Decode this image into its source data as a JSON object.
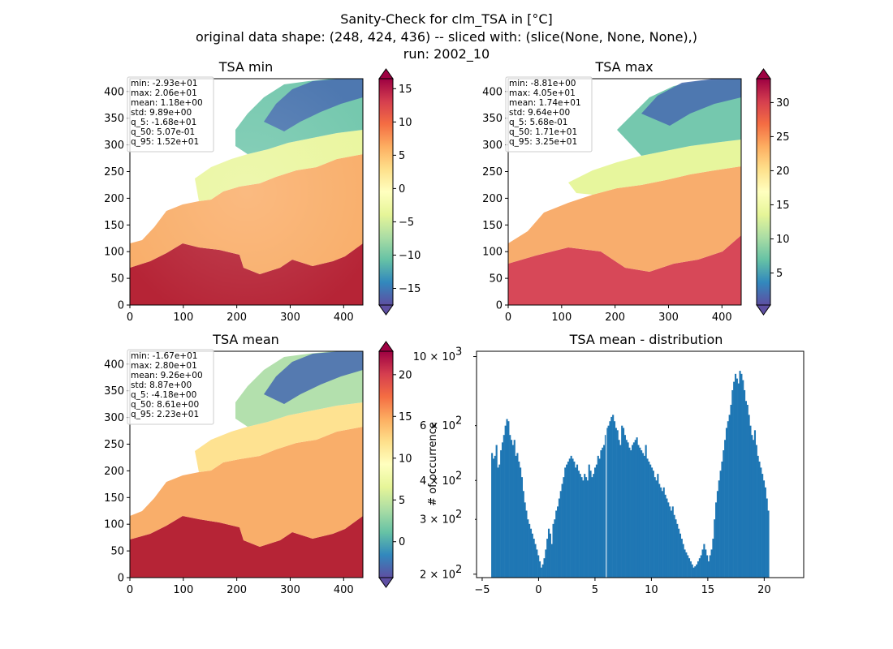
{
  "figure": {
    "title_lines": [
      "Sanity-Check for clm_TSA in [°C]",
      "original data shape: (248, 424, 436) -- sliced with: (slice(None, None, None),)",
      "run: 2002_10"
    ]
  },
  "chart_data": [
    {
      "type": "heatmap",
      "title": "TSA min",
      "xlim": [
        0,
        436
      ],
      "ylim": [
        0,
        424
      ],
      "xticks": [
        "0",
        "100",
        "200",
        "300",
        "400"
      ],
      "yticks": [
        "0",
        "50",
        "100",
        "150",
        "200",
        "250",
        "300",
        "350",
        "400"
      ],
      "colormap": "Spectral_r",
      "colorbar": {
        "vmin": -17.5,
        "vmax": 16.5,
        "ticks": [
          "−15",
          "−10",
          "−5",
          "0",
          "5",
          "10",
          "15"
        ],
        "extend": "both"
      },
      "stats": [
        "min: -2.93e+01",
        "max: 2.06e+01",
        "mean: 1.18e+00",
        "std: 9.89e+00",
        "q_5: -1.68e+01",
        "q_50: 5.07e-01",
        "q_95: 1.52e+01"
      ]
    },
    {
      "type": "heatmap",
      "title": "TSA max",
      "xlim": [
        0,
        436
      ],
      "ylim": [
        0,
        424
      ],
      "xticks": [
        "0",
        "100",
        "200",
        "300",
        "400"
      ],
      "yticks": [
        "0",
        "50",
        "100",
        "150",
        "200",
        "250",
        "300",
        "350",
        "400"
      ],
      "colormap": "Spectral_r",
      "colorbar": {
        "vmin": 0.3,
        "vmax": 33.5,
        "ticks": [
          "5",
          "10",
          "15",
          "20",
          "25",
          "30"
        ],
        "extend": "both"
      },
      "stats": [
        "min: -8.81e+00",
        "max: 4.05e+01",
        "mean: 1.74e+01",
        "std: 9.64e+00",
        "q_5: 5.68e-01",
        "q_50: 1.71e+01",
        "q_95: 3.25e+01"
      ]
    },
    {
      "type": "heatmap",
      "title": "TSA mean",
      "xlim": [
        0,
        436
      ],
      "ylim": [
        0,
        424
      ],
      "xticks": [
        "0",
        "100",
        "200",
        "300",
        "400"
      ],
      "yticks": [
        "0",
        "50",
        "100",
        "150",
        "200",
        "250",
        "300",
        "350",
        "400"
      ],
      "colormap": "Spectral_r",
      "colorbar": {
        "vmin": -4.3,
        "vmax": 22.8,
        "ticks": [
          "0",
          "5",
          "10",
          "15",
          "20"
        ],
        "extend": "both"
      },
      "stats": [
        "min: -1.67e+01",
        "max: 2.80e+01",
        "mean: 9.26e+00",
        "std: 8.87e+00",
        "q_5: -4.18e+00",
        "q_50: 8.61e+00",
        "q_95: 2.23e+01"
      ]
    },
    {
      "type": "bar",
      "title": "TSA mean - distribution",
      "ylabel": "# of occurrence",
      "yscale": "log",
      "xlim": [
        -5.5,
        23.5
      ],
      "ylim": [
        195,
        1040
      ],
      "xticks": [
        "−5",
        "0",
        "5",
        "10",
        "15",
        "20"
      ],
      "yticks_major": [
        {
          "value": 200,
          "base": "2",
          "exp": "2"
        },
        {
          "value": 1000,
          "base": "10",
          "exp": "3"
        }
      ],
      "yticks_minor": [
        {
          "value": 300,
          "base": "3",
          "exp": "2"
        },
        {
          "value": 400,
          "base": "4",
          "exp": "2"
        },
        {
          "value": 600,
          "base": "6",
          "exp": "2"
        }
      ],
      "bar_color": "#1f77b4",
      "bins": {
        "start": -4.2,
        "width": 0.1324
      },
      "values": [
        490,
        470,
        480,
        520,
        440,
        450,
        500,
        530,
        560,
        600,
        630,
        620,
        560,
        540,
        520,
        540,
        480,
        490,
        460,
        440,
        410,
        370,
        340,
        320,
        300,
        290,
        280,
        270,
        260,
        250,
        240,
        230,
        220,
        210,
        215,
        225,
        240,
        260,
        280,
        270,
        250,
        290,
        300,
        320,
        330,
        350,
        370,
        390,
        410,
        440,
        450,
        460,
        470,
        480,
        470,
        460,
        440,
        450,
        430,
        420,
        410,
        400,
        420,
        410,
        400,
        450,
        430,
        410,
        420,
        440,
        450,
        480,
        470,
        500,
        510,
        520,
        560,
        590,
        600,
        620,
        640,
        650,
        620,
        590,
        580,
        540,
        520,
        600,
        590,
        560,
        540,
        530,
        510,
        500,
        520,
        530,
        540,
        550,
        520,
        510,
        500,
        490,
        480,
        520,
        470,
        460,
        450,
        440,
        430,
        410,
        400,
        420,
        390,
        380,
        370,
        380,
        360,
        350,
        340,
        330,
        320,
        330,
        310,
        300,
        290,
        280,
        270,
        260,
        250,
        240,
        235,
        230,
        225,
        220,
        215,
        210,
        212,
        215,
        220,
        225,
        230,
        240,
        250,
        240,
        230,
        220,
        230,
        240,
        260,
        300,
        340,
        370,
        400,
        430,
        460,
        500,
        540,
        590,
        620,
        650,
        700,
        780,
        830,
        880,
        850,
        820,
        900,
        880,
        840,
        780,
        720,
        700,
        650,
        600,
        560,
        540,
        580,
        520,
        480,
        460,
        440,
        420,
        400,
        380,
        350,
        320
      ]
    }
  ]
}
